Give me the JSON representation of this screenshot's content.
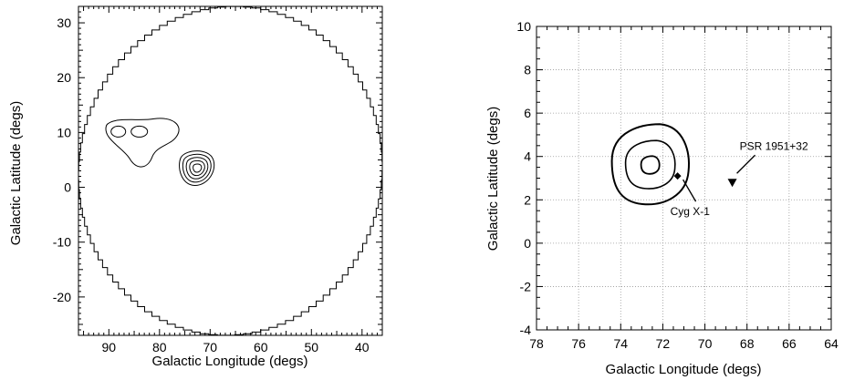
{
  "chart_data": [
    {
      "type": "contour",
      "xlabel": "Galactic Longitude (degs)",
      "ylabel": "Galactic Latitude (degs)",
      "xlim": [
        96,
        36
      ],
      "ylim": [
        -27,
        33
      ],
      "xticks": [
        90,
        80,
        70,
        60,
        50,
        40
      ],
      "yticks": [
        30,
        20,
        10,
        0,
        -10,
        -20
      ],
      "grid": false,
      "field_of_view": {
        "center": [
          66,
          3
        ],
        "radius_deg": 30
      },
      "contours": [
        {
          "region": "northwest",
          "levels": 1,
          "center": [
            82,
            8
          ]
        },
        {
          "region": "main",
          "levels": 5,
          "center": [
            72.5,
            3.5
          ]
        }
      ]
    },
    {
      "type": "contour",
      "xlabel": "Galactic Longitude (degs)",
      "ylabel": "Galactic Latitude (degs)",
      "xlim": [
        78,
        64
      ],
      "ylim": [
        -4,
        10
      ],
      "xticks": [
        78,
        76,
        74,
        72,
        70,
        68,
        66,
        64
      ],
      "yticks": [
        10,
        8,
        6,
        4,
        2,
        0,
        -2,
        -4
      ],
      "grid": true,
      "contour_center": [
        72.6,
        3.6
      ],
      "sources": [
        {
          "name": "Cyg X-1",
          "l": 71.3,
          "b": 3.1,
          "marker": "diamond"
        },
        {
          "name": "PSR 1951+32",
          "l": 68.7,
          "b": 2.8,
          "marker": "triangle-down"
        }
      ]
    }
  ]
}
